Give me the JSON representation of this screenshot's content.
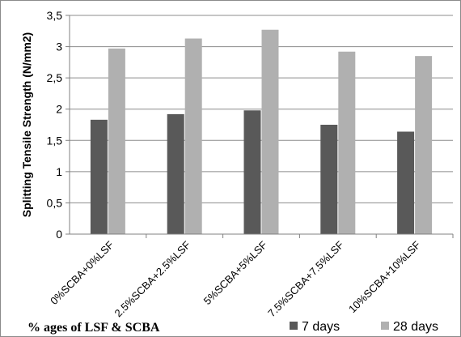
{
  "chart_data": {
    "type": "bar",
    "categories": [
      "0%SCBA+0%LSF",
      "2.5%SCBA+2.5%LSF",
      "5%SCBA+5%LSF",
      "7.5%SCBA+7.5%LSF",
      "10%SCBA+10%LSF"
    ],
    "series": [
      {
        "name": "7 days",
        "values": [
          1.83,
          1.92,
          1.98,
          1.75,
          1.64
        ],
        "color": "#595959"
      },
      {
        "name": "28 days",
        "values": [
          2.97,
          3.13,
          3.27,
          2.92,
          2.85
        ],
        "color": "#b0b0b0"
      }
    ],
    "ylabel": "Splitting Tensile Strength (N/mm2)",
    "xlabel": "% ages of LSF & SCBA",
    "ylim": [
      0,
      3.5
    ],
    "yticks": [
      "0",
      "0,5",
      "1",
      "1,5",
      "2",
      "2,5",
      "3",
      "3,5"
    ],
    "grid": true,
    "legend": "bottom-right"
  }
}
